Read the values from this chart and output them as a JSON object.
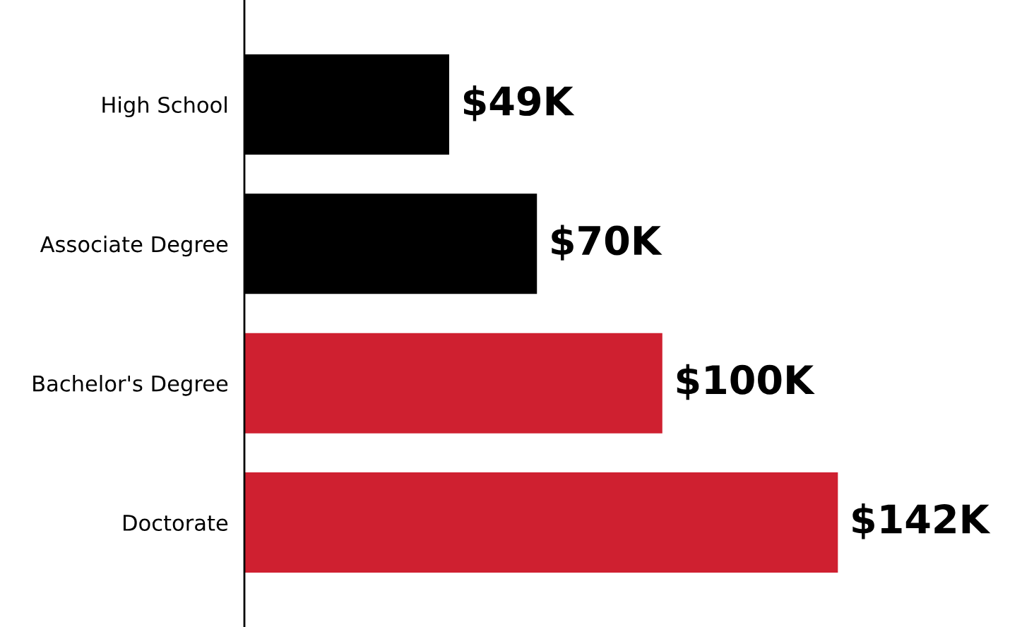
{
  "chart_data": {
    "type": "bar",
    "orientation": "horizontal",
    "categories": [
      "High School",
      "Associate Degree",
      "Bachelor's Degree",
      "Doctorate"
    ],
    "values": [
      49,
      70,
      100,
      142
    ],
    "colors": [
      "#000000",
      "#000000",
      "#cf2030",
      "#cf2030"
    ],
    "value_labels": [
      "$49K",
      "$70K",
      "$100K",
      "$142K"
    ],
    "tick_labels": "y",
    "grid": false,
    "legend": false
  }
}
